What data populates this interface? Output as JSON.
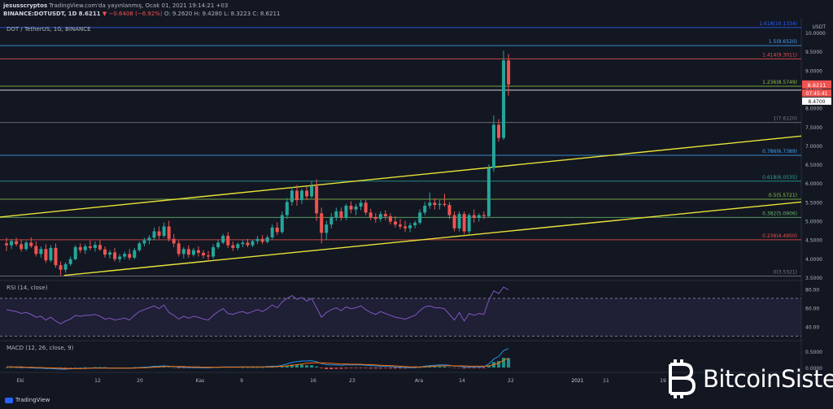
{
  "header": {
    "user": "jesusscryptos",
    "published": "TradingView.com'da yayınlanmış, Ocak 01, 2021 19:14:21 +03",
    "symbol": "BINANCE:DOTUSDT, 1D",
    "price": "8.6211",
    "change": "▼ −0.6408 (−6.92%)",
    "o": "O: 9.2620",
    "h": "H: 9.4280",
    "l": "L: 8.3223",
    "c": "C: 8.6211"
  },
  "panes": {
    "main_title": "DOT / TetherUS, 1G, BINANCE",
    "rsi_title": "RSI (14, close)",
    "macd_title": "MACD (12, 26, close, 9)"
  },
  "axis": {
    "currency": "USDT",
    "price_ticks": [
      "10.0000",
      "9.5000",
      "9.0000",
      "8.5000",
      "8.0000",
      "7.5000",
      "7.0000",
      "6.5000",
      "6.0000",
      "5.5000",
      "5.0000",
      "4.5000",
      "4.0000",
      "3.5000"
    ],
    "rsi_ticks": [
      "80.00",
      "60.00",
      "40.00"
    ],
    "macd_ticks": [
      "0.5000",
      "0.0000"
    ],
    "time_labels": [
      "Eki",
      "12",
      "20",
      "Kas",
      "9",
      "16",
      "23",
      "Ara",
      "14",
      "22",
      "2021",
      "11",
      "19"
    ],
    "last_price_label": "8.6211",
    "countdown_label": "07:45:41",
    "level_label": "8.4700"
  },
  "fib_levels": [
    {
      "label": "1.618(10.1334)",
      "price": 10.1334,
      "color": "#2962ff"
    },
    {
      "label": "1.5(9.6520)",
      "price": 9.652,
      "color": "#42a5f5"
    },
    {
      "label": "1.414(9.3011)",
      "price": 9.3011,
      "color": "#ef5350"
    },
    {
      "label": "1.236(8.5749)",
      "price": 8.5749,
      "color": "#8bc34a"
    },
    {
      "label": "1(7.6120)",
      "price": 7.612,
      "color": "#787b86"
    },
    {
      "label": "0.786(6.7389)",
      "price": 6.7389,
      "color": "#42a5f5"
    },
    {
      "label": "0.618(6.0535)",
      "price": 6.0535,
      "color": "#26a69a"
    },
    {
      "label": "0.5(5.5721)",
      "price": 5.5721,
      "color": "#8bc34a"
    },
    {
      "label": "0.382(5.0906)",
      "price": 5.0906,
      "color": "#66bb6a"
    },
    {
      "label": "0.236(4.4950)",
      "price": 4.495,
      "color": "#ef5350"
    },
    {
      "label": "0(3.5321)",
      "price": 3.5321,
      "color": "#787b86"
    }
  ],
  "channel": {
    "upper": {
      "x1": 0,
      "p1": 5.1,
      "x2": 1,
      "p2": 7.25
    },
    "lower": {
      "x1": 0.08,
      "p1": 3.55,
      "x2": 1,
      "p2": 5.5
    },
    "color": "#e8e337"
  },
  "candles": [
    [
      4.4,
      4.55,
      4.2,
      4.35
    ],
    [
      4.35,
      4.52,
      4.25,
      4.46
    ],
    [
      4.46,
      4.55,
      4.32,
      4.38
    ],
    [
      4.38,
      4.5,
      4.18,
      4.25
    ],
    [
      4.25,
      4.47,
      4.2,
      4.42
    ],
    [
      4.42,
      4.56,
      4.28,
      4.33
    ],
    [
      4.33,
      4.45,
      4.05,
      4.12
    ],
    [
      4.12,
      4.32,
      4.02,
      4.25
    ],
    [
      4.25,
      4.38,
      3.88,
      3.95
    ],
    [
      3.95,
      4.35,
      3.9,
      4.28
    ],
    [
      4.28,
      4.4,
      3.75,
      3.82
    ],
    [
      3.82,
      3.92,
      3.55,
      3.7
    ],
    [
      3.7,
      3.9,
      3.62,
      3.85
    ],
    [
      3.85,
      4.05,
      3.8,
      3.98
    ],
    [
      3.98,
      4.35,
      3.95,
      4.3
    ],
    [
      4.3,
      4.4,
      4.15,
      4.22
    ],
    [
      4.22,
      4.38,
      4.12,
      4.32
    ],
    [
      4.32,
      4.48,
      4.22,
      4.28
    ],
    [
      4.28,
      4.45,
      4.18,
      4.36
    ],
    [
      4.36,
      4.5,
      4.2,
      4.24
    ],
    [
      4.24,
      4.32,
      4.02,
      4.1
    ],
    [
      4.1,
      4.22,
      4.0,
      4.16
    ],
    [
      4.16,
      4.28,
      3.92,
      3.98
    ],
    [
      3.98,
      4.12,
      3.9,
      4.05
    ],
    [
      4.05,
      4.18,
      3.98,
      4.12
    ],
    [
      4.12,
      4.25,
      3.96,
      4.02
    ],
    [
      4.02,
      4.28,
      3.98,
      4.22
    ],
    [
      4.22,
      4.45,
      4.18,
      4.4
    ],
    [
      4.4,
      4.55,
      4.32,
      4.48
    ],
    [
      4.48,
      4.62,
      4.38,
      4.55
    ],
    [
      4.55,
      4.82,
      4.48,
      4.72
    ],
    [
      4.72,
      4.85,
      4.52,
      4.6
    ],
    [
      4.6,
      4.95,
      4.55,
      4.85
    ],
    [
      4.85,
      5.0,
      4.45,
      4.52
    ],
    [
      4.52,
      4.65,
      4.3,
      4.4
    ],
    [
      4.4,
      4.48,
      4.05,
      4.12
    ],
    [
      4.12,
      4.3,
      4.0,
      4.25
    ],
    [
      4.25,
      4.35,
      4.02,
      4.1
    ],
    [
      4.1,
      4.28,
      4.05,
      4.22
    ],
    [
      4.22,
      4.32,
      4.05,
      4.15
    ],
    [
      4.15,
      4.22,
      4.0,
      4.08
    ],
    [
      4.08,
      4.2,
      3.95,
      4.05
    ],
    [
      4.05,
      4.38,
      4.0,
      4.3
    ],
    [
      4.3,
      4.5,
      4.25,
      4.42
    ],
    [
      4.42,
      4.65,
      4.38,
      4.6
    ],
    [
      4.6,
      4.7,
      4.28,
      4.35
    ],
    [
      4.35,
      4.45,
      4.2,
      4.28
    ],
    [
      4.28,
      4.42,
      4.22,
      4.38
    ],
    [
      4.38,
      4.48,
      4.3,
      4.42
    ],
    [
      4.42,
      4.52,
      4.3,
      4.35
    ],
    [
      4.35,
      4.5,
      4.3,
      4.46
    ],
    [
      4.46,
      4.6,
      4.38,
      4.52
    ],
    [
      4.52,
      4.62,
      4.38,
      4.44
    ],
    [
      4.44,
      4.62,
      4.4,
      4.56
    ],
    [
      4.56,
      4.9,
      4.5,
      4.82
    ],
    [
      4.82,
      4.96,
      4.62,
      4.7
    ],
    [
      4.7,
      5.25,
      4.65,
      5.15
    ],
    [
      5.15,
      5.6,
      5.05,
      5.5
    ],
    [
      5.5,
      5.9,
      5.4,
      5.8
    ],
    [
      5.8,
      5.95,
      5.4,
      5.55
    ],
    [
      5.55,
      5.85,
      5.45,
      5.8
    ],
    [
      5.8,
      5.9,
      5.55,
      5.65
    ],
    [
      5.65,
      6.05,
      5.6,
      5.92
    ],
    [
      5.92,
      6.1,
      5.0,
      5.2
    ],
    [
      5.2,
      5.35,
      4.4,
      4.68
    ],
    [
      4.68,
      5.0,
      4.5,
      4.9
    ],
    [
      4.9,
      5.2,
      4.8,
      5.1
    ],
    [
      5.1,
      5.35,
      5.0,
      5.25
    ],
    [
      5.25,
      5.35,
      5.0,
      5.08
    ],
    [
      5.08,
      5.45,
      5.02,
      5.4
    ],
    [
      5.4,
      5.52,
      5.2,
      5.3
    ],
    [
      5.3,
      5.45,
      5.15,
      5.38
    ],
    [
      5.38,
      5.55,
      5.28,
      5.48
    ],
    [
      5.48,
      5.55,
      5.15,
      5.22
    ],
    [
      5.22,
      5.32,
      5.02,
      5.1
    ],
    [
      5.1,
      5.2,
      4.95,
      5.05
    ],
    [
      5.05,
      5.25,
      4.98,
      5.18
    ],
    [
      5.18,
      5.28,
      5.02,
      5.12
    ],
    [
      5.12,
      5.2,
      4.9,
      4.98
    ],
    [
      4.98,
      5.12,
      4.82,
      4.9
    ],
    [
      4.9,
      5.05,
      4.78,
      4.85
    ],
    [
      4.85,
      5.0,
      4.7,
      4.8
    ],
    [
      4.8,
      4.95,
      4.7,
      4.88
    ],
    [
      4.88,
      5.0,
      4.8,
      4.95
    ],
    [
      4.95,
      5.3,
      4.9,
      5.22
    ],
    [
      5.22,
      5.5,
      5.15,
      5.4
    ],
    [
      5.4,
      5.75,
      5.32,
      5.48
    ],
    [
      5.48,
      5.6,
      5.3,
      5.42
    ],
    [
      5.42,
      5.55,
      5.3,
      5.45
    ],
    [
      5.45,
      5.72,
      5.38,
      5.42
    ],
    [
      5.42,
      5.5,
      5.05,
      5.15
    ],
    [
      5.15,
      5.25,
      4.72,
      4.8
    ],
    [
      4.8,
      5.25,
      4.72,
      5.18
    ],
    [
      5.18,
      5.25,
      4.65,
      4.72
    ],
    [
      4.72,
      5.2,
      4.65,
      5.15
    ],
    [
      5.15,
      5.3,
      4.95,
      5.08
    ],
    [
      5.08,
      5.2,
      4.98,
      5.15
    ],
    [
      5.15,
      5.25,
      5.05,
      5.12
    ],
    [
      5.12,
      6.5,
      5.1,
      6.4
    ],
    [
      6.4,
      7.8,
      6.3,
      7.55
    ],
    [
      7.55,
      7.7,
      7.1,
      7.2
    ],
    [
      7.2,
      9.52,
      7.15,
      9.26
    ],
    [
      9.26,
      9.43,
      8.32,
      8.62
    ]
  ],
  "rsi": [
    58,
    57,
    56,
    54,
    55,
    53,
    50,
    51,
    47,
    50,
    46,
    43,
    46,
    48,
    52,
    51,
    52,
    52,
    53,
    51,
    48,
    49,
    47,
    48,
    49,
    47,
    52,
    56,
    58,
    60,
    62,
    59,
    63,
    55,
    52,
    48,
    51,
    49,
    51,
    50,
    48,
    47,
    52,
    56,
    59,
    54,
    53,
    55,
    56,
    54,
    56,
    58,
    56,
    59,
    63,
    60,
    66,
    70,
    73,
    69,
    71,
    67,
    70,
    60,
    50,
    55,
    58,
    60,
    57,
    61,
    59,
    60,
    62,
    58,
    55,
    53,
    56,
    54,
    52,
    50,
    49,
    48,
    50,
    52,
    57,
    61,
    62,
    60,
    60,
    59,
    53,
    47,
    55,
    46,
    54,
    52,
    54,
    53,
    68,
    78,
    75,
    82,
    79
  ],
  "macd": {
    "macd": [
      0.02,
      0.02,
      0.01,
      0.0,
      0.0,
      -0.01,
      -0.02,
      -0.02,
      -0.03,
      -0.03,
      -0.04,
      -0.05,
      -0.05,
      -0.04,
      -0.03,
      -0.03,
      -0.02,
      -0.02,
      -0.01,
      -0.01,
      -0.01,
      -0.02,
      -0.02,
      -0.02,
      -0.02,
      -0.02,
      -0.01,
      0.0,
      0.01,
      0.02,
      0.04,
      0.04,
      0.05,
      0.04,
      0.03,
      0.01,
      0.01,
      0.0,
      0.0,
      0.0,
      -0.01,
      -0.01,
      0.0,
      0.01,
      0.02,
      0.02,
      0.02,
      0.02,
      0.02,
      0.02,
      0.02,
      0.02,
      0.02,
      0.03,
      0.04,
      0.04,
      0.07,
      0.11,
      0.16,
      0.18,
      0.2,
      0.2,
      0.21,
      0.18,
      0.12,
      0.09,
      0.08,
      0.08,
      0.07,
      0.08,
      0.08,
      0.08,
      0.08,
      0.07,
      0.06,
      0.05,
      0.04,
      0.04,
      0.03,
      0.02,
      0.01,
      0.0,
      0.0,
      0.0,
      0.02,
      0.04,
      0.06,
      0.07,
      0.08,
      0.08,
      0.07,
      0.04,
      0.04,
      0.02,
      0.02,
      0.02,
      0.02,
      0.02,
      0.11,
      0.26,
      0.34,
      0.52,
      0.58
    ],
    "signal": [
      0.02,
      0.02,
      0.02,
      0.02,
      0.01,
      0.01,
      0.0,
      0.0,
      -0.01,
      -0.01,
      -0.02,
      -0.02,
      -0.03,
      -0.03,
      -0.03,
      -0.03,
      -0.03,
      -0.02,
      -0.02,
      -0.02,
      -0.02,
      -0.02,
      -0.02,
      -0.02,
      -0.02,
      -0.02,
      -0.02,
      -0.01,
      -0.01,
      0.0,
      0.01,
      0.02,
      0.03,
      0.03,
      0.03,
      0.03,
      0.03,
      0.02,
      0.02,
      0.02,
      0.01,
      0.01,
      0.01,
      0.01,
      0.01,
      0.01,
      0.01,
      0.01,
      0.02,
      0.02,
      0.02,
      0.02,
      0.02,
      0.02,
      0.02,
      0.03,
      0.04,
      0.05,
      0.07,
      0.09,
      0.11,
      0.13,
      0.14,
      0.15,
      0.14,
      0.14,
      0.13,
      0.12,
      0.11,
      0.11,
      0.1,
      0.1,
      0.1,
      0.09,
      0.09,
      0.08,
      0.07,
      0.06,
      0.06,
      0.05,
      0.04,
      0.03,
      0.02,
      0.02,
      0.02,
      0.02,
      0.03,
      0.04,
      0.05,
      0.05,
      0.06,
      0.05,
      0.05,
      0.05,
      0.04,
      0.04,
      0.04,
      0.04,
      0.05,
      0.09,
      0.14,
      0.22,
      0.29
    ]
  },
  "brand": {
    "tradingview": "TradingView",
    "logo_text": "BitcoinSistemi"
  }
}
